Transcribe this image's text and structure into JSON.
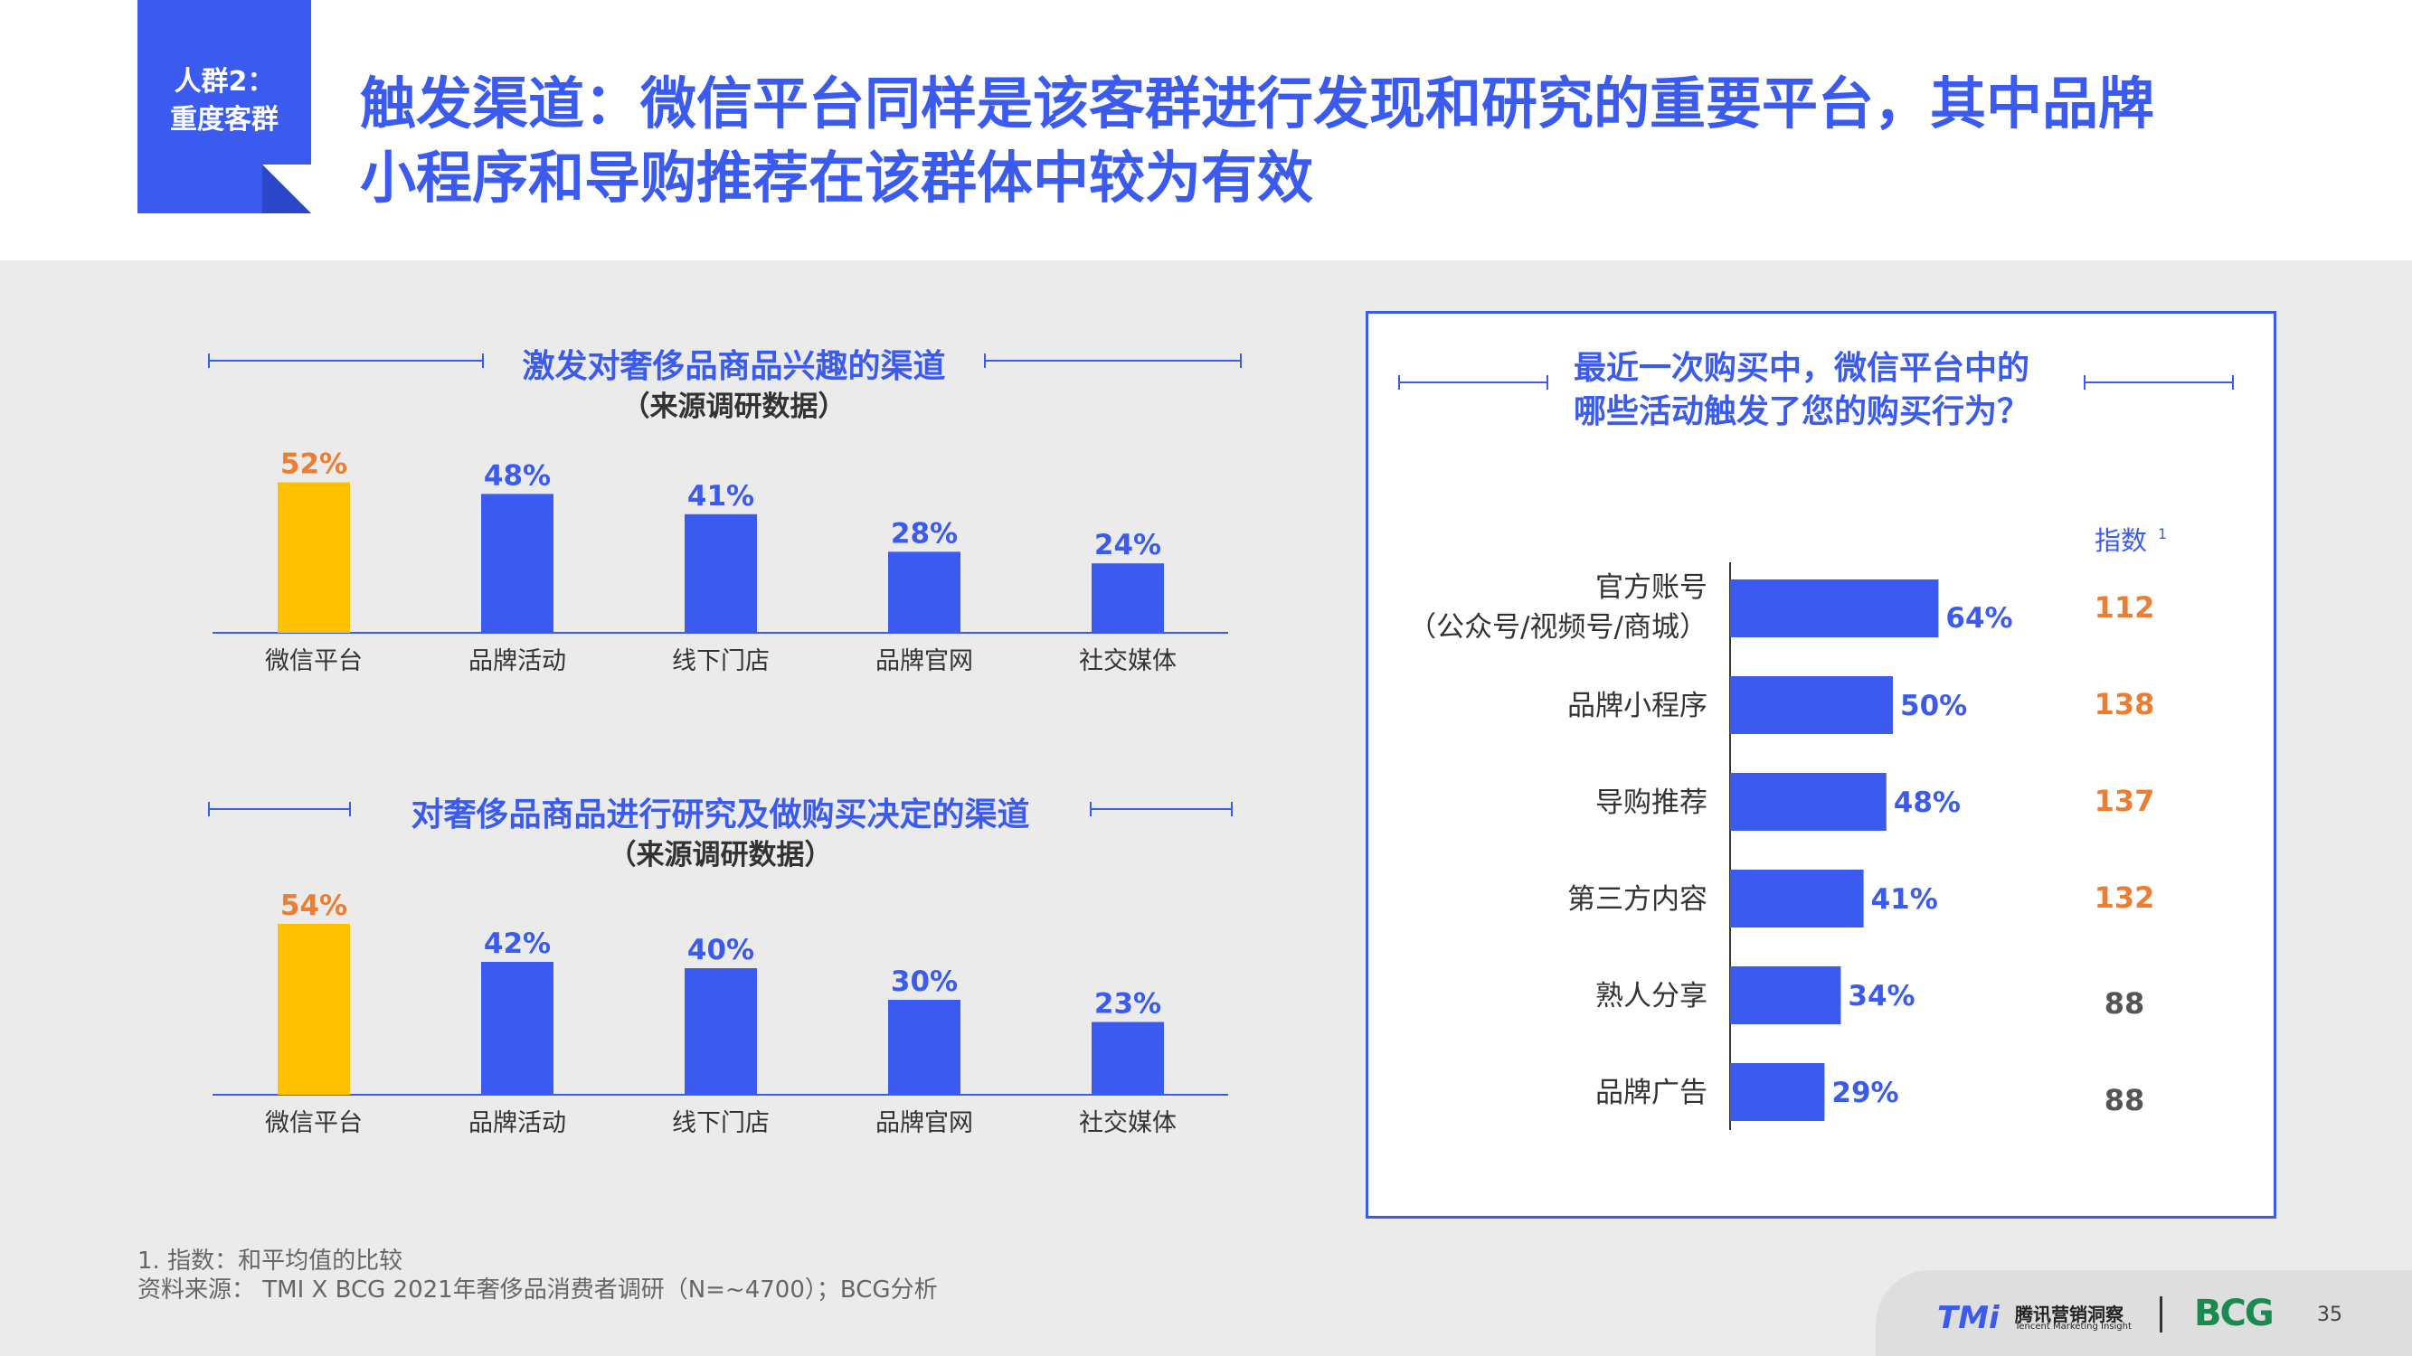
{
  "header": {
    "tag_line1": "人群2：",
    "tag_line2": "重度客群",
    "title_line1": "触发渠道：微信平台同样是该客群进行发现和研究的重要平台，其中品牌",
    "title_line2": "小程序和导购推荐在该群体中较为有效"
  },
  "colors": {
    "accent": "#3b5bf0",
    "highlight_bar": "#ffc000",
    "highlight_label": "#ed7d31",
    "index_gray": "#555555"
  },
  "chart_data": [
    {
      "type": "bar",
      "title": "激发对奢侈品商品兴趣的渠道",
      "subtitle": "（来源调研数据）",
      "categories": [
        "微信平台",
        "品牌活动",
        "线下门店",
        "品牌官网",
        "社交媒体"
      ],
      "values": [
        52,
        48,
        41,
        28,
        24
      ],
      "labels": [
        "52%",
        "48%",
        "41%",
        "28%",
        "24%"
      ],
      "highlight_index": 0
    },
    {
      "type": "bar",
      "title": "对奢侈品商品进行研究及做购买决定的渠道",
      "subtitle": "（来源调研数据）",
      "categories": [
        "微信平台",
        "品牌活动",
        "线下门店",
        "品牌官网",
        "社交媒体"
      ],
      "values": [
        54,
        42,
        40,
        30,
        23
      ],
      "labels": [
        "54%",
        "42%",
        "40%",
        "30%",
        "23%"
      ],
      "highlight_index": 0
    },
    {
      "type": "bar",
      "orientation": "horizontal",
      "title_line1": "最近一次购买中，微信平台中的",
      "title_line2": "哪些活动触发了您的购买行为？",
      "index_header": "指数",
      "index_header_sup": "1",
      "categories": [
        {
          "line1": "官方账号",
          "line2": "（公众号/视频号/商城）"
        },
        {
          "line1": "品牌小程序",
          "line2": ""
        },
        {
          "line1": "导购推荐",
          "line2": ""
        },
        {
          "line1": "第三方内容",
          "line2": ""
        },
        {
          "line1": "熟人分享",
          "line2": ""
        },
        {
          "line1": "品牌广告",
          "line2": ""
        }
      ],
      "values": [
        64,
        50,
        48,
        41,
        34,
        29
      ],
      "labels": [
        "64%",
        "50%",
        "48%",
        "41%",
        "34%",
        "29%"
      ],
      "index": [
        "112",
        "138",
        "137",
        "132",
        "88",
        "88"
      ],
      "index_highlight": [
        true,
        true,
        true,
        true,
        false,
        false
      ]
    }
  ],
  "footnotes": {
    "note1": "1. 指数：和平均值的比较",
    "source": "资料来源： TMI X BCG 2021年奢侈品消费者调研（N=~4700）；BCG分析"
  },
  "footer": {
    "tmi_logo": "TMi",
    "tmi_cn": "腾讯营销洞察",
    "tmi_en": "Tencent Marketing Insight",
    "bcg_logo": "BCG",
    "page_number": "35"
  }
}
